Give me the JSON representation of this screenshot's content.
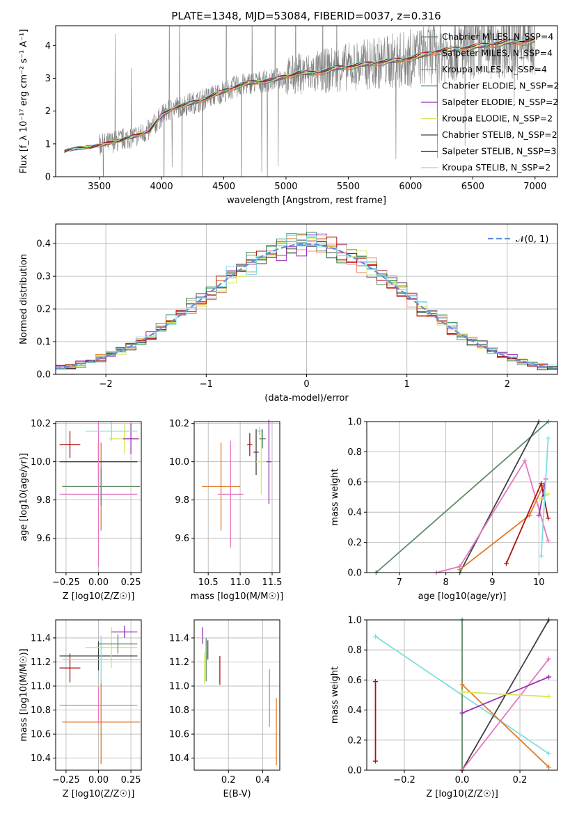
{
  "figure": {
    "title": "PLATE=1348, MJD=53084, FIBERID=0037, z=0.316"
  },
  "colors": {
    "Chabrier MILES": "#5d8a65",
    "Salpeter MILES": "#f48a79",
    "Kroupa MILES": "#e07b27",
    "Chabrier ELODIE": "#2e8b57",
    "Salpeter ELODIE": "#9b2fb5",
    "Kroupa ELODIE": "#d5e85a",
    "Chabrier STELIB": "#404040",
    "Salpeter STELIB": "#b01010",
    "Kroupa STELIB": "#7fdde0",
    "data": "#808080",
    "gauss": "#5f8ee0",
    "pink": "#e377c2"
  },
  "chart_data": [
    {
      "id": "spectrum",
      "type": "line",
      "xlabel": "wavelength [Angstrom, rest frame]",
      "ylabel": "Flux [f_λ 10⁻¹⁷ erg cm⁻² s⁻¹ A⁻¹]",
      "xlim": [
        3150,
        7180
      ],
      "ylim": [
        0,
        4.6
      ],
      "xticks": [
        3500,
        4000,
        4500,
        5000,
        5500,
        6000,
        6500,
        7000
      ],
      "yticks": [
        0,
        1,
        2,
        3,
        4
      ],
      "grid": false,
      "legend_position": "top-right",
      "legend": [
        {
          "label": "Chabrier MILES, N_SSP=4",
          "color": "#5d8a65"
        },
        {
          "label": "Salpeter MILES, N_SSP=4",
          "color": "#f48a79"
        },
        {
          "label": "Kroupa MILES, N_SSP=4",
          "color": "#e07b27"
        },
        {
          "label": "Chabrier ELODIE, N_SSP=2",
          "color": "#2e8b57"
        },
        {
          "label": "Salpeter ELODIE, N_SSP=2",
          "color": "#9b2fb5"
        },
        {
          "label": "Kroupa ELODIE, N_SSP=2",
          "color": "#d5e85a"
        },
        {
          "label": "Chabrier STELIB, N_SSP=2",
          "color": "#404040"
        },
        {
          "label": "Salpeter STELIB, N_SSP=3",
          "color": "#b01010"
        },
        {
          "label": "Kroupa STELIB, N_SSP=2",
          "color": "#7fdde0"
        }
      ],
      "continuum": {
        "x": [
          3220,
          3300,
          3400,
          3500,
          3600,
          3700,
          3800,
          3900,
          4000,
          4100,
          4200,
          4300,
          4400,
          4500,
          4600,
          4700,
          4800,
          4900,
          5000,
          5100,
          5200,
          5300,
          5400,
          5500,
          5600,
          5700,
          5800,
          5900,
          6000,
          6100,
          6200,
          6300,
          6400,
          6500,
          6600,
          6700,
          6800,
          6900,
          7000
        ],
        "y": [
          0.78,
          0.85,
          0.9,
          0.95,
          1.05,
          1.15,
          1.25,
          1.4,
          1.85,
          2.1,
          2.2,
          2.3,
          2.45,
          2.6,
          2.75,
          2.85,
          2.9,
          2.95,
          3.05,
          3.15,
          3.15,
          3.2,
          3.3,
          3.35,
          3.4,
          3.45,
          3.5,
          3.55,
          3.6,
          3.7,
          3.8,
          3.85,
          3.9,
          3.95,
          4.0,
          4.05,
          4.1,
          4.1,
          4.15
        ]
      }
    },
    {
      "id": "residuals",
      "type": "line",
      "xlabel": "(data-model)/error",
      "ylabel": "Normed distribution",
      "xlim": [
        -2.5,
        2.5
      ],
      "ylim": [
        0,
        0.46
      ],
      "xticks": [
        -2,
        -1,
        0,
        1,
        2
      ],
      "xticklabels": [
        "−2",
        "−1",
        "0",
        "1",
        "2"
      ],
      "yticks": [
        0.0,
        0.1,
        0.2,
        0.3,
        0.4
      ],
      "yticklabels": [
        "0.0",
        "0.1",
        "0.2",
        "0.3",
        "0.4"
      ],
      "grid": true,
      "legend_position": "top-right",
      "legend": [
        {
          "label": "𝒩(0, 1)",
          "color": "#5f8ee0",
          "style": "dashed"
        }
      ],
      "series": [
        {
          "name": "Normal(0,1)",
          "function": "gaussian",
          "mean": 0,
          "sigma": 1
        }
      ]
    },
    {
      "id": "age-vs-Z",
      "type": "scatter",
      "xlabel": "Z [log10(Z/Z☉)]",
      "ylabel": "age [log10(age/yr)]",
      "xlim": [
        -0.33,
        0.33
      ],
      "ylim": [
        9.42,
        10.21
      ],
      "xticks": [
        -0.25,
        0,
        0.25
      ],
      "xticklabels": [
        "−0.25",
        "0.00",
        "0.25"
      ],
      "yticks": [
        9.6,
        9.8,
        10.0,
        10.2
      ],
      "yticklabels": [
        "9.6",
        "9.8",
        "10.0",
        "10.2"
      ],
      "grid": true,
      "errorbars": [
        {
          "x": 0.02,
          "y": 9.87,
          "xerr": 0.3,
          "yerr": 0.23,
          "color": "#e07b27"
        },
        {
          "x": 0.02,
          "y": 9.87,
          "xerr": 0.3,
          "yerr": 0.1,
          "color": "#5d8a65"
        },
        {
          "x": 0.0,
          "y": 10.0,
          "xerr": 0.3,
          "yerr": 0.1,
          "color": "#404040"
        },
        {
          "x": -0.22,
          "y": 10.09,
          "xerr": 0.08,
          "yerr": 0.07,
          "color": "#b01010"
        },
        {
          "x": 0.0,
          "y": 9.83,
          "xerr": 0.3,
          "yerr": 0.38,
          "color": "#e377c2"
        },
        {
          "x": 0.2,
          "y": 10.12,
          "xerr": 0.12,
          "yerr": 0.08,
          "color": "#d5e85a"
        },
        {
          "x": 0.25,
          "y": 10.12,
          "xerr": 0.06,
          "yerr": 0.08,
          "color": "#9b2fb5"
        },
        {
          "x": 0.1,
          "y": 10.16,
          "xerr": 0.2,
          "yerr": 0.05,
          "color": "#7fdde0"
        }
      ]
    },
    {
      "id": "age-vs-mass",
      "type": "scatter",
      "xlabel": "mass [log10(M/M☉)]",
      "ylabel": "",
      "xlim": [
        10.28,
        11.62
      ],
      "ylim": [
        9.42,
        10.21
      ],
      "xticks": [
        10.5,
        11.0,
        11.5
      ],
      "xticklabels": [
        "10.5",
        "11.0",
        "11.5"
      ],
      "yticks": [
        9.6,
        9.8,
        10.0,
        10.2
      ],
      "yticklabels": [
        "9.6",
        "9.8",
        "10.0",
        "10.2"
      ],
      "grid": true,
      "errorbars": [
        {
          "x": 10.7,
          "y": 9.87,
          "xerr": 0.3,
          "yerr": 0.23,
          "color": "#e07b27"
        },
        {
          "x": 10.85,
          "y": 9.83,
          "xerr": 0.2,
          "yerr": 0.28,
          "color": "#e377c2"
        },
        {
          "x": 11.25,
          "y": 10.05,
          "xerr": 0.04,
          "yerr": 0.12,
          "color": "#404040"
        },
        {
          "x": 11.15,
          "y": 10.09,
          "xerr": 0.04,
          "yerr": 0.06,
          "color": "#b01010"
        },
        {
          "x": 11.33,
          "y": 10.0,
          "xerr": 0.08,
          "yerr": 0.17,
          "color": "#d5e85a"
        },
        {
          "x": 11.45,
          "y": 10.0,
          "xerr": 0.04,
          "yerr": 0.22,
          "color": "#9b2fb5"
        },
        {
          "x": 11.3,
          "y": 10.16,
          "xerr": 0.04,
          "yerr": 0.02,
          "color": "#7fdde0"
        },
        {
          "x": 11.35,
          "y": 10.12,
          "xerr": 0.05,
          "yerr": 0.05,
          "color": "#5d8a65"
        }
      ]
    },
    {
      "id": "weight-vs-age",
      "type": "line",
      "xlabel": "age [log10(age/yr)]",
      "ylabel": "mass weight",
      "xlim": [
        6.3,
        10.4
      ],
      "ylim": [
        0,
        1
      ],
      "xticks": [
        7,
        8,
        9,
        10
      ],
      "xticklabels": [
        "7",
        "8",
        "9",
        "10"
      ],
      "yticks": [
        0.0,
        0.2,
        0.4,
        0.6,
        0.8,
        1.0
      ],
      "yticklabels": [
        "0.0",
        "0.2",
        "0.4",
        "0.6",
        "0.8",
        "1.0"
      ],
      "grid": true,
      "series": [
        {
          "name": "Chabrier MILES",
          "x": [
            6.5,
            10.2
          ],
          "y": [
            0.0,
            1.0
          ],
          "color": "#5d8a65"
        },
        {
          "name": "Chabrier STELIB",
          "x": [
            8.3,
            10.0
          ],
          "y": [
            0.0,
            1.0
          ],
          "color": "#404040"
        },
        {
          "name": "Salpeter MILES",
          "x": [
            7.8,
            8.3,
            9.7,
            10.2
          ],
          "y": [
            0.0,
            0.04,
            0.74,
            0.21
          ],
          "color": "#e377c2"
        },
        {
          "name": "Kroupa MILES",
          "x": [
            8.3,
            9.8,
            10.1
          ],
          "y": [
            0.02,
            0.38,
            0.58
          ],
          "color": "#e07b27"
        },
        {
          "name": "Salpeter STELIB",
          "x": [
            9.3,
            10.05,
            10.2
          ],
          "y": [
            0.06,
            0.59,
            0.36
          ],
          "color": "#b01010"
        },
        {
          "name": "Salpeter ELODIE",
          "x": [
            10.0,
            10.15
          ],
          "y": [
            0.38,
            0.62
          ],
          "color": "#9b2fb5"
        },
        {
          "name": "Kroupa ELODIE",
          "x": [
            10.05,
            10.2
          ],
          "y": [
            0.49,
            0.52
          ],
          "color": "#d5e85a"
        },
        {
          "name": "Kroupa STELIB",
          "x": [
            10.05,
            10.2
          ],
          "y": [
            0.11,
            0.89
          ],
          "color": "#7fdde0"
        }
      ]
    },
    {
      "id": "mass-vs-Z",
      "type": "scatter",
      "xlabel": "Z [log10(Z/Z☉)]",
      "ylabel": "mass [log10(M/M☉)]",
      "xlim": [
        -0.33,
        0.33
      ],
      "ylim": [
        10.3,
        11.55
      ],
      "xticks": [
        -0.25,
        0,
        0.25
      ],
      "xticklabels": [
        "−0.25",
        "0.00",
        "0.25"
      ],
      "yticks": [
        10.4,
        10.6,
        10.8,
        11.0,
        11.2,
        11.4
      ],
      "yticklabels": [
        "10.4",
        "10.6",
        "10.8",
        "11.0",
        "11.2",
        "11.4"
      ],
      "grid": true,
      "errorbars": [
        {
          "x": 0.02,
          "y": 10.7,
          "xerr": 0.3,
          "yerr": 0.35,
          "color": "#e07b27"
        },
        {
          "x": 0.0,
          "y": 10.84,
          "xerr": 0.3,
          "yerr": 0.15,
          "color": "#e377c2"
        },
        {
          "x": 0.0,
          "y": 11.25,
          "xerr": 0.3,
          "yerr": 0.12,
          "color": "#404040"
        },
        {
          "x": -0.22,
          "y": 11.15,
          "xerr": 0.08,
          "yerr": 0.12,
          "color": "#b01010"
        },
        {
          "x": 0.1,
          "y": 11.32,
          "xerr": 0.2,
          "yerr": 0.17,
          "color": "#d5e85a"
        },
        {
          "x": 0.2,
          "y": 11.45,
          "xerr": 0.1,
          "yerr": 0.05,
          "color": "#9b2fb5"
        },
        {
          "x": 0.02,
          "y": 11.22,
          "xerr": 0.3,
          "yerr": 0.2,
          "color": "#7fdde0"
        },
        {
          "x": 0.15,
          "y": 11.35,
          "xerr": 0.15,
          "yerr": 0.08,
          "color": "#5d8a65"
        }
      ]
    },
    {
      "id": "mass-vs-ebv",
      "type": "scatter",
      "xlabel": "E(B-V)",
      "ylabel": "",
      "xlim": [
        0.0,
        0.5
      ],
      "ylim": [
        10.3,
        11.55
      ],
      "xticks": [
        0.2,
        0.4
      ],
      "xticklabels": [
        "0.2",
        "0.4"
      ],
      "yticks": [
        10.4,
        10.6,
        10.8,
        11.0,
        11.2,
        11.4
      ],
      "yticklabels": [
        "10.4",
        "10.6",
        "10.8",
        "11.0",
        "11.2",
        "11.4"
      ],
      "grid": true,
      "errorbars": [
        {
          "x": 0.05,
          "y": 11.42,
          "xerr": 0,
          "yerr": 0.07,
          "color": "#9b2fb5"
        },
        {
          "x": 0.07,
          "y": 11.22,
          "xerr": 0,
          "yerr": 0.18,
          "color": "#5d8a65"
        },
        {
          "x": 0.08,
          "y": 11.3,
          "xerr": 0,
          "yerr": 0.08,
          "color": "#404040"
        },
        {
          "x": 0.06,
          "y": 11.15,
          "xerr": 0,
          "yerr": 0.13,
          "color": "#d5e85a"
        },
        {
          "x": 0.15,
          "y": 11.13,
          "xerr": 0,
          "yerr": 0.12,
          "color": "#b01010"
        },
        {
          "x": 0.44,
          "y": 10.9,
          "xerr": 0,
          "yerr": 0.24,
          "color": "#e377c2"
        },
        {
          "x": 0.48,
          "y": 10.62,
          "xerr": 0,
          "yerr": 0.28,
          "color": "#e07b27"
        }
      ]
    },
    {
      "id": "weight-vs-Z",
      "type": "line",
      "xlabel": "Z [log10(Z/Z☉)]",
      "ylabel": "mass weight",
      "xlim": [
        -0.33,
        0.33
      ],
      "ylim": [
        0,
        1
      ],
      "xticks": [
        -0.2,
        0.0,
        0.2
      ],
      "xticklabels": [
        "−0.2",
        "0.0",
        "0.2"
      ],
      "yticks": [
        0.0,
        0.2,
        0.4,
        0.6,
        0.8,
        1.0
      ],
      "yticklabels": [
        "0.0",
        "0.2",
        "0.4",
        "0.6",
        "0.8",
        "1.0"
      ],
      "grid": true,
      "series": [
        {
          "name": "Kroupa STELIB",
          "x": [
            -0.3,
            0.3
          ],
          "y": [
            0.89,
            0.11
          ],
          "color": "#7fdde0"
        },
        {
          "name": "Chabrier MILES",
          "x": [
            0.0,
            0.0
          ],
          "y": [
            0.0,
            1.0
          ],
          "color": "#5d8a65"
        },
        {
          "name": "Chabrier STELIB",
          "x": [
            0.0,
            0.3
          ],
          "y": [
            0.0,
            1.0
          ],
          "color": "#404040"
        },
        {
          "name": "Kroupa MILES",
          "x": [
            0.0,
            0.3
          ],
          "y": [
            0.57,
            0.02
          ],
          "color": "#e07b27"
        },
        {
          "name": "Salpeter MILES",
          "x": [
            0.0,
            0.3
          ],
          "y": [
            0.0,
            0.74
          ],
          "color": "#e377c2"
        },
        {
          "name": "Salpeter ELODIE",
          "x": [
            0.0,
            0.3
          ],
          "y": [
            0.38,
            0.62
          ],
          "color": "#9b2fb5"
        },
        {
          "name": "Kroupa ELODIE",
          "x": [
            0.0,
            0.3
          ],
          "y": [
            0.52,
            0.49
          ],
          "color": "#d5e85a"
        },
        {
          "name": "Salpeter STELIB",
          "x": [
            -0.3,
            -0.3
          ],
          "y": [
            0.06,
            0.59
          ],
          "color": "#b01010"
        }
      ]
    }
  ]
}
